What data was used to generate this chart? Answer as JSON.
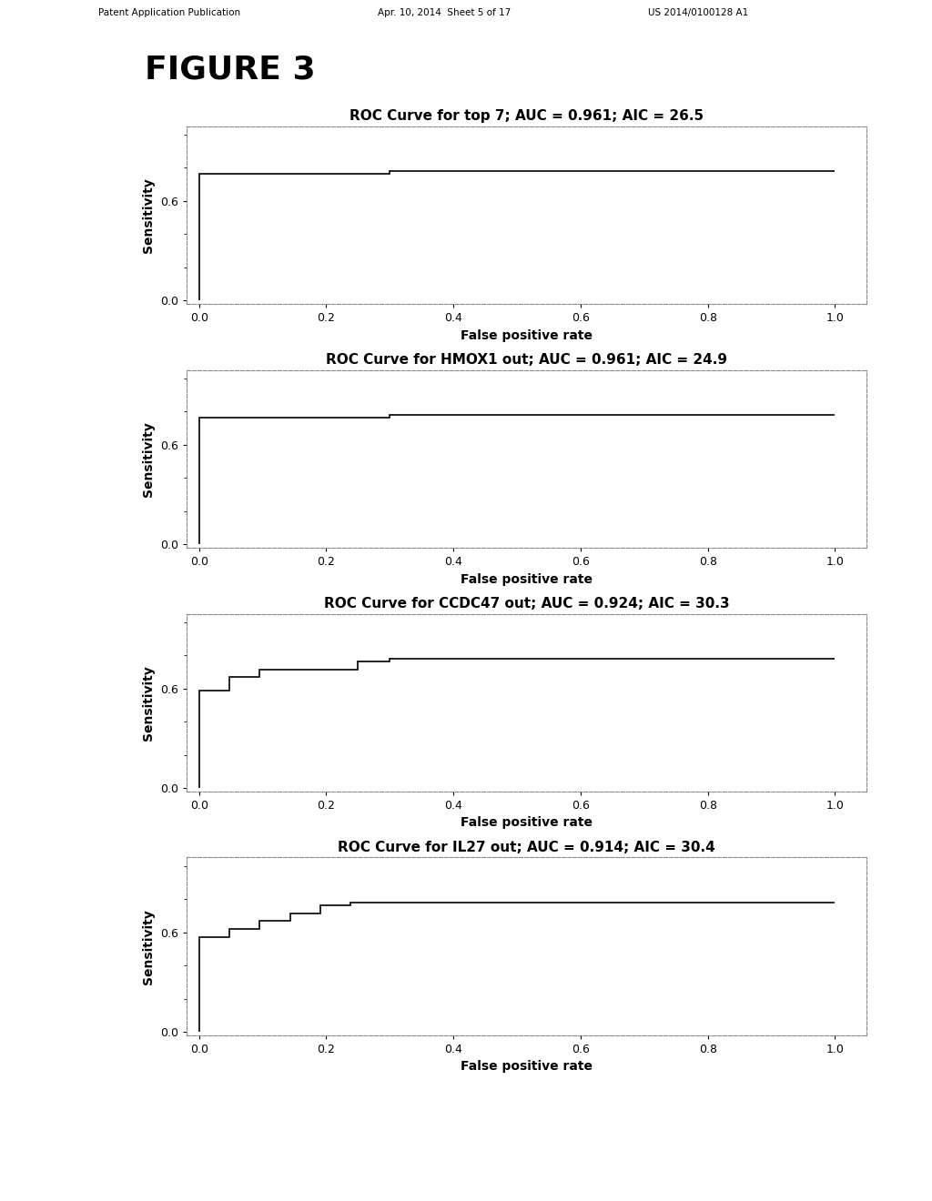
{
  "figure_label": "FIGURE 3",
  "background_color": "#ffffff",
  "header_left": "Patent Application Publication",
  "header_mid": "Apr. 10, 2014  Sheet 5 of 17",
  "header_right": "US 2014/0100128 A1",
  "plots": [
    {
      "title": "ROC Curve for top 7; AUC = 0.961; AIC = 26.5",
      "x": [
        0.0,
        0.0,
        0.0,
        0.3,
        0.3,
        1.0
      ],
      "y": [
        0.0,
        0.724,
        0.762,
        0.762,
        0.781,
        0.781
      ],
      "xlabel": "False positive rate",
      "ylabel": "Sensitivity",
      "xlim": [
        -0.02,
        1.05
      ],
      "ylim": [
        -0.02,
        1.05
      ],
      "xticks": [
        0.0,
        0.2,
        0.4,
        0.6,
        0.8,
        1.0
      ],
      "yticks": [
        0.0,
        0.6
      ]
    },
    {
      "title": "ROC Curve for HMOX1 out; AUC = 0.961; AIC = 24.9",
      "x": [
        0.0,
        0.0,
        0.0,
        0.3,
        0.3,
        1.0
      ],
      "y": [
        0.0,
        0.724,
        0.762,
        0.762,
        0.781,
        0.781
      ],
      "xlabel": "False positive rate",
      "ylabel": "Sensitivity",
      "xlim": [
        -0.02,
        1.05
      ],
      "ylim": [
        -0.02,
        1.05
      ],
      "xticks": [
        0.0,
        0.2,
        0.4,
        0.6,
        0.8,
        1.0
      ],
      "yticks": [
        0.0,
        0.6
      ]
    },
    {
      "title": "ROC Curve for CCDC47 out; AUC = 0.924; AIC = 30.3",
      "x": [
        0.0,
        0.0,
        0.048,
        0.048,
        0.095,
        0.095,
        0.25,
        0.25,
        0.3,
        0.3,
        1.0
      ],
      "y": [
        0.0,
        0.59,
        0.59,
        0.667,
        0.667,
        0.714,
        0.714,
        0.762,
        0.762,
        0.781,
        0.781
      ],
      "xlabel": "False positive rate",
      "ylabel": "Sensitivity",
      "xlim": [
        -0.02,
        1.05
      ],
      "ylim": [
        -0.02,
        1.05
      ],
      "xticks": [
        0.0,
        0.2,
        0.4,
        0.6,
        0.8,
        1.0
      ],
      "yticks": [
        0.0,
        0.6
      ]
    },
    {
      "title": "ROC Curve for IL27 out; AUC = 0.914; AIC = 30.4",
      "x": [
        0.0,
        0.0,
        0.048,
        0.048,
        0.095,
        0.095,
        0.143,
        0.143,
        0.19,
        0.19,
        0.238,
        0.238,
        1.0
      ],
      "y": [
        0.0,
        0.571,
        0.571,
        0.619,
        0.619,
        0.667,
        0.667,
        0.714,
        0.714,
        0.762,
        0.762,
        0.781,
        0.781
      ],
      "xlabel": "False positive rate",
      "ylabel": "Sensitivity",
      "xlim": [
        -0.02,
        1.05
      ],
      "ylim": [
        -0.02,
        1.05
      ],
      "xticks": [
        0.0,
        0.2,
        0.4,
        0.6,
        0.8,
        1.0
      ],
      "yticks": [
        0.0,
        0.6
      ]
    }
  ],
  "line_color": "#000000",
  "line_width": 1.2,
  "title_fontsize": 11,
  "label_fontsize": 10,
  "tick_fontsize": 9,
  "figure_label_fontsize": 26,
  "spine_color": "#888888",
  "spine_linestyle": "--",
  "spine_linewidth": 0.8
}
